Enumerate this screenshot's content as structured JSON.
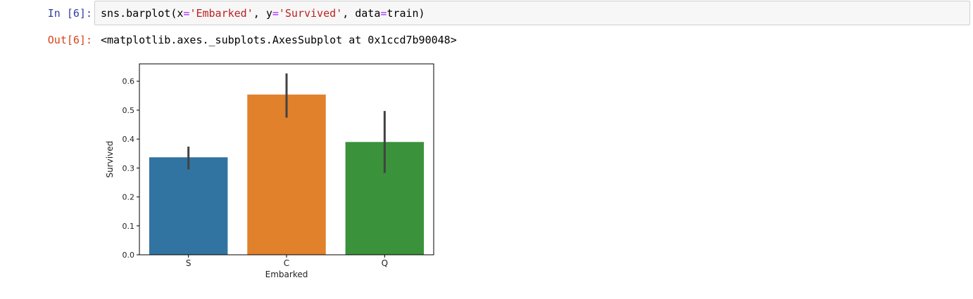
{
  "cell_in": {
    "prompt": "In [6]:",
    "code": {
      "fn": "sns.barplot(",
      "x_kw": "x",
      "eq": "=",
      "x_val": "'Embarked'",
      "sep": ", ",
      "y_kw": "y",
      "y_val": "'Survived'",
      "data_kw": "data",
      "data_val": "train)"
    }
  },
  "cell_out": {
    "prompt": "Out[6]:",
    "text": "<matplotlib.axes._subplots.AxesSubplot at 0x1ccd7b90048>"
  },
  "chart_data": {
    "type": "bar",
    "categories": [
      "S",
      "C",
      "Q"
    ],
    "values": [
      0.337,
      0.554,
      0.39
    ],
    "error_bars": [
      [
        0.295,
        0.374
      ],
      [
        0.474,
        0.627
      ],
      [
        0.283,
        0.497
      ]
    ],
    "colors": [
      "#3274a1",
      "#e1812c",
      "#3a923a"
    ],
    "xlabel": "Embarked",
    "ylabel": "Survived",
    "ylim": [
      0,
      0.66
    ],
    "yticks": [
      0.0,
      0.1,
      0.2,
      0.3,
      0.4,
      0.5,
      0.6
    ],
    "ytick_labels": [
      "0.0",
      "0.1",
      "0.2",
      "0.3",
      "0.4",
      "0.5",
      "0.6"
    ],
    "grid": false
  }
}
